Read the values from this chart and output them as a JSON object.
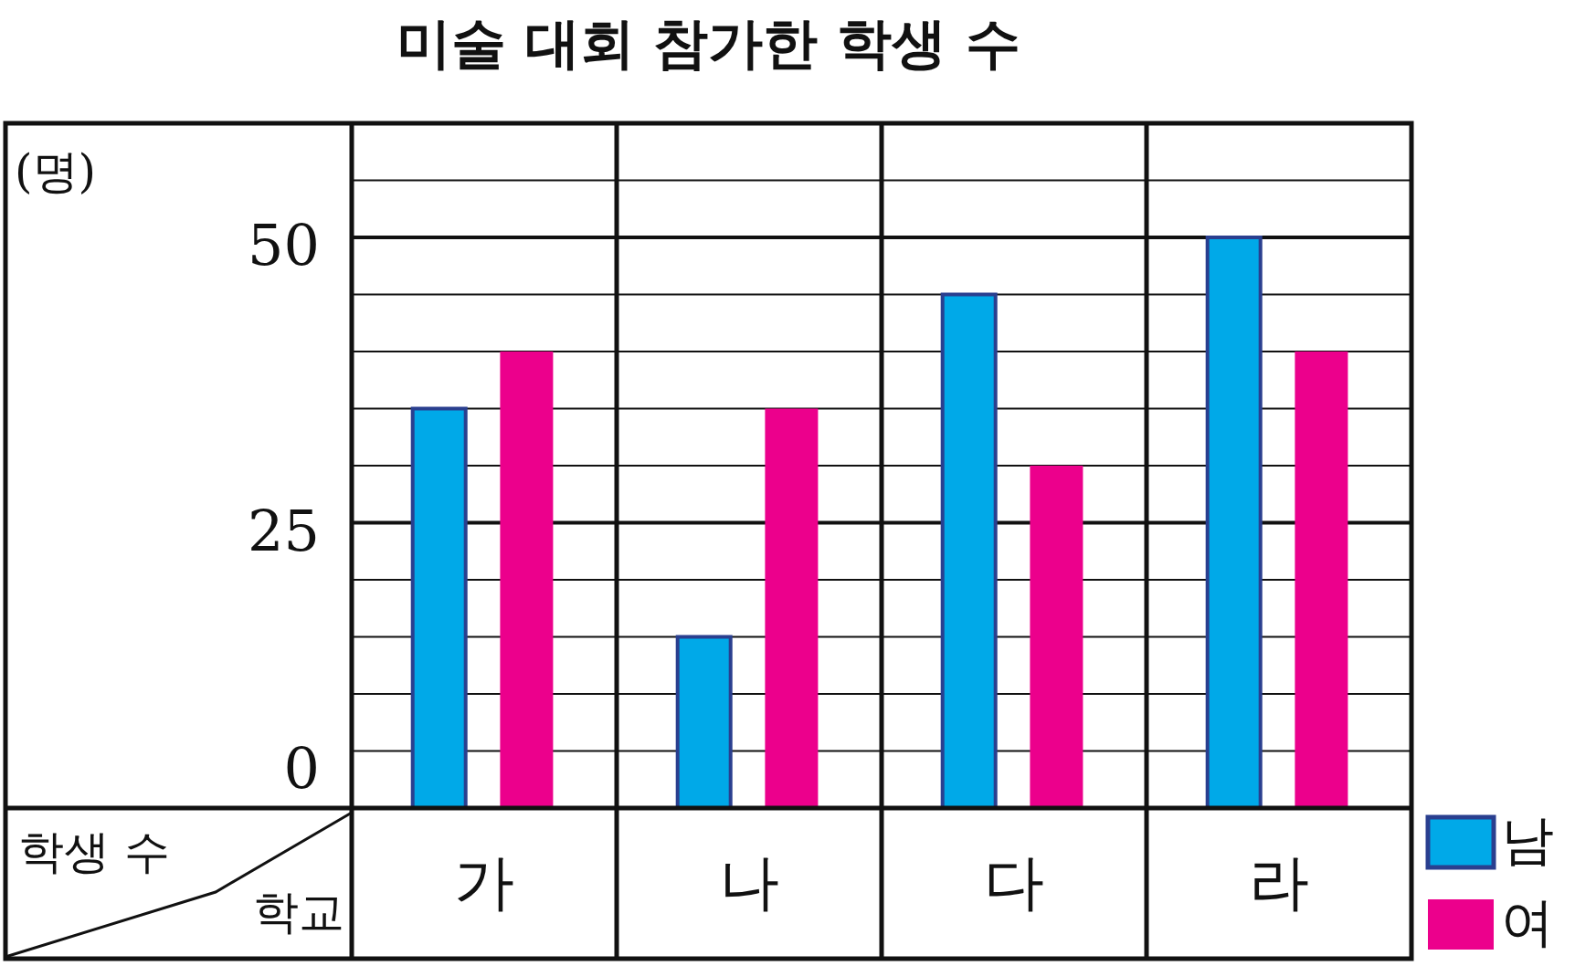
{
  "chart_data": {
    "type": "bar",
    "title": "미술 대회 참가한 학생 수",
    "xlabel": "학교",
    "ylabel": "학생 수",
    "annotations": [
      "(명)"
    ],
    "categories": [
      "가",
      "나",
      "다",
      "라"
    ],
    "series": [
      {
        "name": "남",
        "color": "#00a9e8",
        "values": [
          35,
          15,
          45,
          50
        ]
      },
      {
        "name": "여",
        "color": "#ec008c",
        "values": [
          40,
          35,
          30,
          40
        ]
      }
    ],
    "ylim": [
      0,
      60
    ],
    "yticks": [
      0,
      {
        "value": 5,
        "label": null
      },
      {
        "value": 10,
        "label": null
      },
      {
        "value": 15,
        "label": null
      },
      {
        "value": 20,
        "label": null
      },
      25,
      {
        "value": 30,
        "label": null
      },
      {
        "value": 35,
        "label": null
      },
      {
        "value": 40,
        "label": null
      },
      {
        "value": 45,
        "label": null
      },
      50,
      {
        "value": 55,
        "label": null
      }
    ],
    "grid": "y",
    "legend": "bottom right"
  }
}
